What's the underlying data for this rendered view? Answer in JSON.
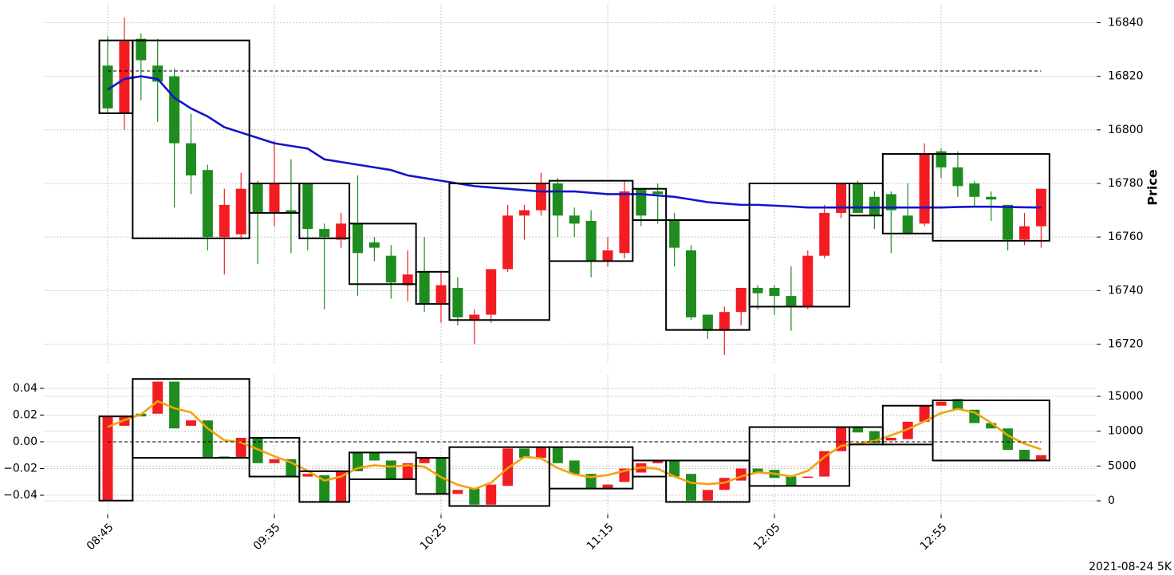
{
  "chart_data": [
    {
      "type": "candlestick",
      "ylabel": "Price",
      "open": [
        16808,
        16833,
        16826,
        16818,
        16795,
        16783,
        16760,
        16772,
        16778,
        16769,
        16780,
        16769,
        16763,
        16760,
        16765,
        16754,
        16756,
        16743,
        16746,
        16735,
        16742,
        16730,
        16731,
        16748,
        16768,
        16770,
        16780,
        16768,
        16765,
        16751,
        16755,
        16777,
        16768,
        16776,
        16756,
        16730,
        16725,
        16732,
        16741,
        16739,
        16738,
        16734,
        16753,
        16769,
        16780,
        16769,
        16768,
        16770,
        16761,
        16791,
        16786,
        16779,
        16775,
        16774,
        16759,
        16764,
        16778
      ],
      "high": [
        16835,
        16842,
        16836,
        16834,
        16823,
        16806,
        16787,
        16778,
        16784,
        16781,
        16796,
        16789,
        16780,
        16765,
        16769,
        16783,
        16760,
        16757,
        16755,
        16760,
        16747,
        16745,
        16733,
        16748,
        16772,
        16772,
        16784,
        16782,
        16771,
        16770,
        16760,
        16781,
        16778,
        16780,
        16769,
        16757,
        16731,
        16734,
        16741,
        16742,
        16742,
        16749,
        16755,
        16772,
        16780,
        16781,
        16777,
        16777,
        16780,
        16795,
        16793,
        16792,
        16781,
        16777,
        16772,
        16769,
        16778
      ],
      "low": [
        16806,
        16800,
        16811,
        16803,
        16771,
        16776,
        16755,
        16746,
        16759,
        16750,
        16764,
        16754,
        16755,
        16733,
        16756,
        16738,
        16751,
        16737,
        16736,
        16732,
        16728,
        16727,
        16720,
        16728,
        16747,
        16759,
        16768,
        16760,
        16760,
        16745,
        16749,
        16752,
        16764,
        16765,
        16749,
        16729,
        16722,
        16716,
        16727,
        16733,
        16731,
        16725,
        16733,
        16752,
        16767,
        16769,
        16763,
        16754,
        16761,
        16764,
        16782,
        16775,
        16771,
        16766,
        16755,
        16757,
        16756
      ],
      "close": [
        16824,
        16806,
        16834,
        16824,
        16820,
        16795,
        16785,
        16760,
        16761,
        16780,
        16769,
        16770,
        16780,
        16763,
        16759,
        16765,
        16758,
        16753,
        16742,
        16747,
        16735,
        16741,
        16729,
        16731,
        16748,
        16768,
        16770,
        16780,
        16768,
        16766,
        16751,
        16754,
        16778,
        16777,
        16766,
        16755,
        16731,
        16725,
        16732,
        16741,
        16741,
        16738,
        16734,
        16753,
        16769,
        16780,
        16775,
        16776,
        16768,
        16765,
        16792,
        16786,
        16780,
        16775,
        16772,
        16759,
        16764
      ],
      "up_color": "#1e8c1e",
      "down_color": "#f21c22",
      "lines": [
        {
          "color": "#1414cc",
          "values": [
            16815,
            16819,
            16820,
            16819,
            16812,
            16808,
            16805,
            16801,
            16799,
            16797,
            16795,
            16794,
            16793,
            16789,
            16788,
            16787,
            16786,
            16785,
            16783,
            16782,
            16781,
            16780,
            16779,
            16778.5,
            16778,
            16777.5,
            16777,
            16777,
            16777,
            16776.5,
            16776,
            16776,
            16776,
            16775.5,
            16775,
            16774,
            16773,
            16772.5,
            16772,
            16772,
            16771.7,
            16771.4,
            16771,
            16771,
            16771,
            16771,
            16771,
            16771,
            16771,
            16771,
            16771,
            16771.2,
            16771.3,
            16771.3,
            16771.2,
            16771.1,
            16771
          ]
        }
      ],
      "boxes": [
        {
          "start": 0,
          "end": 1,
          "top": 16833.4,
          "bottom": 16806.2
        },
        {
          "start": 2,
          "end": 8,
          "top": 16833.4,
          "bottom": 16759.5
        },
        {
          "start": 9,
          "end": 11,
          "top": 16780,
          "bottom": 16769
        },
        {
          "start": 12,
          "end": 14,
          "top": 16780,
          "bottom": 16759.5
        },
        {
          "start": 15,
          "end": 18,
          "top": 16765,
          "bottom": 16742.4
        },
        {
          "start": 19,
          "end": 20,
          "top": 16747,
          "bottom": 16735
        },
        {
          "start": 21,
          "end": 26,
          "top": 16780,
          "bottom": 16729
        },
        {
          "start": 27,
          "end": 31,
          "top": 16781,
          "bottom": 16751
        },
        {
          "start": 32,
          "end": 33,
          "top": 16778,
          "bottom": 16766.3
        },
        {
          "start": 34,
          "end": 38,
          "top": 16766.3,
          "bottom": 16725.3
        },
        {
          "start": 39,
          "end": 44,
          "top": 16780,
          "bottom": 16734
        },
        {
          "start": 45,
          "end": 46,
          "top": 16780,
          "bottom": 16768
        },
        {
          "start": 47,
          "end": 49,
          "top": 16791,
          "bottom": 16761.3
        },
        {
          "start": 50,
          "end": 56,
          "top": 16791,
          "bottom": 16758.6
        }
      ],
      "hlines": [
        {
          "value": 16822,
          "style": "dashed"
        }
      ],
      "ylim": [
        16713,
        16847
      ],
      "yticks": [
        16720,
        16740,
        16760,
        16780,
        16800,
        16820,
        16840
      ],
      "grid": true
    },
    {
      "type": "candlestick",
      "categories": [
        "08:45",
        null,
        null,
        null,
        null,
        null,
        null,
        null,
        null,
        null,
        "09:35",
        null,
        null,
        null,
        null,
        null,
        null,
        null,
        null,
        null,
        "10:25",
        null,
        null,
        null,
        null,
        null,
        null,
        null,
        null,
        null,
        "11:15",
        null,
        null,
        null,
        null,
        null,
        null,
        null,
        null,
        null,
        "12:05",
        null,
        null,
        null,
        null,
        null,
        null,
        null,
        null,
        null,
        "12:55",
        null,
        null,
        null,
        null,
        null,
        null
      ],
      "open": [
        0.019,
        0.019,
        0.019,
        0.045,
        0.01,
        0.016,
        -0.012,
        -0.012,
        0.003,
        -0.016,
        -0.013,
        -0.026,
        -0.024,
        -0.045,
        -0.022,
        -0.022,
        -0.014,
        -0.028,
        -0.016,
        -0.012,
        -0.039,
        -0.036,
        -0.047,
        -0.032,
        -0.005,
        -0.012,
        -0.004,
        -0.016,
        -0.024,
        -0.035,
        -0.032,
        -0.02,
        -0.016,
        -0.014,
        -0.026,
        -0.044,
        -0.036,
        -0.027,
        -0.02,
        -0.023,
        -0.027,
        -0.033,
        -0.026,
        -0.007,
        0.011,
        0.007,
        -0.001,
        0.003,
        0.015,
        0.027,
        0.03,
        0.024,
        0.014,
        0.01,
        -0.006,
        -0.014,
        -0.01
      ],
      "close": [
        -0.044,
        0.012,
        0.021,
        0.021,
        0.045,
        0.012,
        0.016,
        -0.011,
        -0.012,
        0.003,
        -0.016,
        -0.013,
        -0.026,
        -0.025,
        -0.045,
        -0.008,
        -0.008,
        -0.014,
        -0.028,
        -0.016,
        -0.012,
        -0.039,
        -0.035,
        -0.047,
        -0.033,
        -0.005,
        -0.012,
        -0.004,
        -0.014,
        -0.024,
        -0.035,
        -0.03,
        -0.023,
        -0.016,
        -0.014,
        -0.024,
        -0.044,
        -0.036,
        -0.029,
        -0.02,
        -0.021,
        -0.026,
        -0.027,
        -0.026,
        -0.007,
        0.011,
        0.008,
        0.001,
        0.002,
        0.015,
        0.027,
        0.032,
        0.024,
        0.014,
        0.01,
        -0.006,
        -0.014
      ],
      "up_color": "#1e8c1e",
      "down_color": "#f21c22",
      "lines": [
        {
          "color": "#f2a20c",
          "axis": "y2",
          "values": [
            10600,
            11600,
            12400,
            14300,
            13300,
            12700,
            10400,
            8700,
            8400,
            7400,
            6400,
            5500,
            4300,
            2900,
            3500,
            4700,
            5100,
            4900,
            5100,
            4900,
            3400,
            2300,
            1700,
            2600,
            4700,
            6300,
            6100,
            4700,
            3800,
            3400,
            3700,
            4300,
            4800,
            4600,
            3500,
            2600,
            2400,
            2600,
            3500,
            4100,
            3900,
            3500,
            4300,
            6300,
            7900,
            8200,
            8600,
            9400,
            10300,
            11400,
            12600,
            13200,
            12700,
            11200,
            9400,
            8200,
            7400
          ]
        }
      ],
      "boxes": [
        {
          "start": 0,
          "end": 1,
          "top": 0.019,
          "bottom": -0.044
        },
        {
          "start": 2,
          "end": 8,
          "top": 0.047,
          "bottom": -0.012
        },
        {
          "start": 9,
          "end": 11,
          "top": 0.003,
          "bottom": -0.026
        },
        {
          "start": 12,
          "end": 14,
          "top": -0.022,
          "bottom": -0.045
        },
        {
          "start": 15,
          "end": 18,
          "top": -0.008,
          "bottom": -0.028
        },
        {
          "start": 19,
          "end": 20,
          "top": -0.012,
          "bottom": -0.039
        },
        {
          "start": 21,
          "end": 26,
          "top": -0.004,
          "bottom": -0.048
        },
        {
          "start": 27,
          "end": 31,
          "top": -0.004,
          "bottom": -0.035
        },
        {
          "start": 32,
          "end": 33,
          "top": -0.014,
          "bottom": -0.026
        },
        {
          "start": 34,
          "end": 38,
          "top": -0.014,
          "bottom": -0.045
        },
        {
          "start": 39,
          "end": 44,
          "top": 0.011,
          "bottom": -0.033
        },
        {
          "start": 45,
          "end": 46,
          "top": 0.011,
          "bottom": -0.002
        },
        {
          "start": 47,
          "end": 49,
          "top": 0.027,
          "bottom": -0.002
        },
        {
          "start": 50,
          "end": 56,
          "top": 0.031,
          "bottom": -0.014
        }
      ],
      "hlines": [
        {
          "value": 0,
          "style": "dashed"
        }
      ],
      "ylim": [
        -0.0543,
        0.0501
      ],
      "yticks": [
        {
          "value": -0.04,
          "label": "−0.04"
        },
        {
          "value": -0.02,
          "label": "−0.02"
        },
        {
          "value": 0,
          "label": "0.00"
        },
        0.02,
        0.04
      ],
      "y2lim": [
        -1945,
        18090
      ],
      "y2ticks": [
        0,
        5000,
        10000,
        15000
      ],
      "grid": true,
      "annotation": "2021-08-24 5K"
    }
  ]
}
